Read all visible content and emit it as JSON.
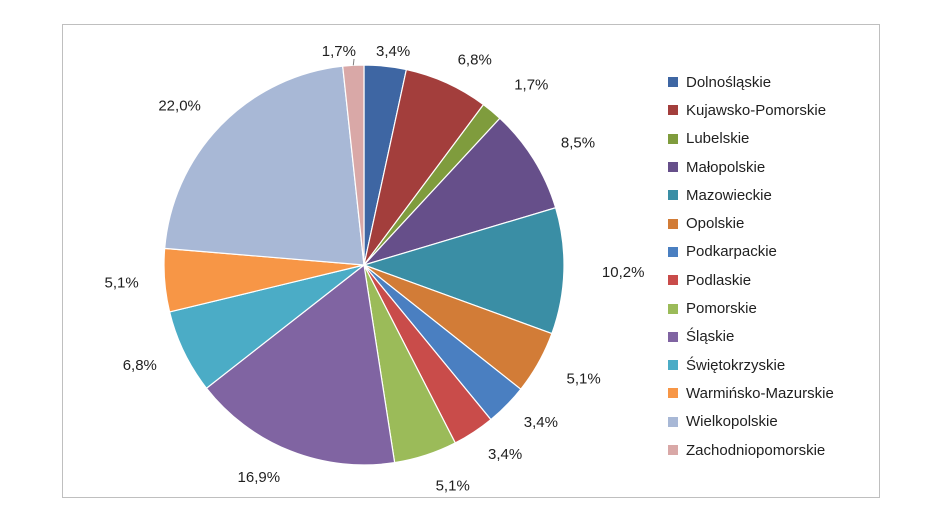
{
  "chart_data": {
    "type": "pie",
    "title": "",
    "legend_position": "right",
    "slices": [
      {
        "name": "Dolnośląskie",
        "value": 3.4,
        "label": "3,4%",
        "color": "#3e66a3"
      },
      {
        "name": "Kujawsko-Pomorskie",
        "value": 6.8,
        "label": "6,8%",
        "color": "#a33e3c"
      },
      {
        "name": "Lubelskie",
        "value": 1.7,
        "label": "1,7%",
        "color": "#7f9c3d"
      },
      {
        "name": "Małopolskie",
        "value": 8.5,
        "label": "8,5%",
        "color": "#664f8a"
      },
      {
        "name": "Mazowieckie",
        "value": 10.2,
        "label": "10,2%",
        "color": "#3a8ea5"
      },
      {
        "name": "Opolskie",
        "value": 5.1,
        "label": "5,1%",
        "color": "#d27c37"
      },
      {
        "name": "Podkarpackie",
        "value": 3.4,
        "label": "3,4%",
        "color": "#4a7fc1"
      },
      {
        "name": "Podlaskie",
        "value": 3.4,
        "label": "3,4%",
        "color": "#c94c4a"
      },
      {
        "name": "Pomorskie",
        "value": 5.1,
        "label": "5,1%",
        "color": "#9bbb59"
      },
      {
        "name": "Śląskie",
        "value": 16.9,
        "label": "16,9%",
        "color": "#8064a2"
      },
      {
        "name": "Świętokrzyskie",
        "value": 6.8,
        "label": "6,8%",
        "color": "#4bacc6"
      },
      {
        "name": "Warmińsko-Mazurskie",
        "value": 5.1,
        "label": "5,1%",
        "color": "#f79646"
      },
      {
        "name": "Wielkopolskie",
        "value": 22.0,
        "label": "22,0%",
        "color": "#a8b8d6"
      },
      {
        "name": "Zachodniopomorskie",
        "value": 1.7,
        "label": "1,7%",
        "color": "#d9a8a7"
      }
    ]
  }
}
